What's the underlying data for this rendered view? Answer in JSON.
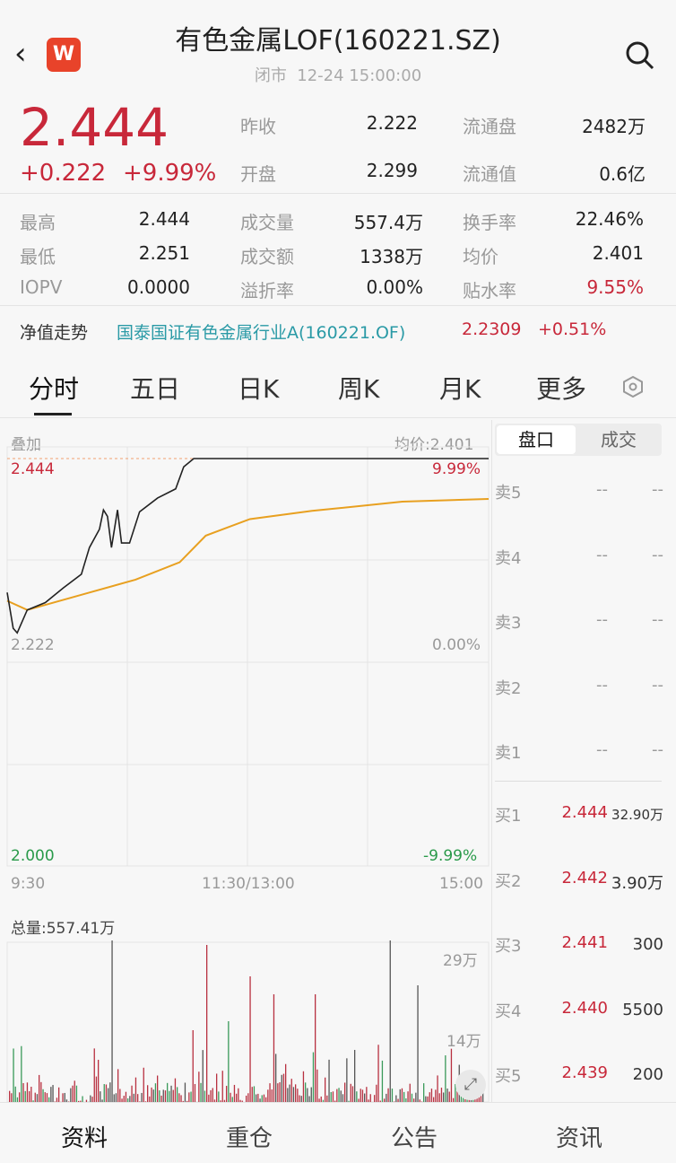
{
  "header": {
    "title": "有色金属LOF(160221.SZ)",
    "status": "闭市",
    "datetime": "12-24 15:00:00",
    "logo_letter": "W",
    "back_icon": "chevron-left",
    "search_icon": "search"
  },
  "quote": {
    "price": "2.444",
    "change": "+0.222",
    "change_pct": "+9.99%",
    "top_stats": [
      {
        "label": "昨收",
        "value": "2.222"
      },
      {
        "label": "流通盘",
        "value": "2482万"
      },
      {
        "label": "开盘",
        "value": "2.299"
      },
      {
        "label": "流通值",
        "value": "0.6亿"
      }
    ],
    "grid": [
      [
        {
          "label": "最高",
          "value": "2.444"
        },
        {
          "label": "成交量",
          "value": "557.4万"
        },
        {
          "label": "换手率",
          "value": "22.46%"
        }
      ],
      [
        {
          "label": "最低",
          "value": "2.251"
        },
        {
          "label": "成交额",
          "value": "1338万"
        },
        {
          "label": "均价",
          "value": "2.401"
        }
      ],
      [
        {
          "label": "IOPV",
          "value": "0.0000"
        },
        {
          "label": "溢折率",
          "value": "0.00%"
        },
        {
          "label": "贴水率",
          "value": "9.55%",
          "color": "#c8283a"
        }
      ]
    ]
  },
  "nav": {
    "label": "净值走势",
    "fund": "国泰国证有色金属行业A(160221.OF)",
    "value": "2.2309",
    "change": "+0.51%"
  },
  "tabs": [
    "分时",
    "五日",
    "日K",
    "周K",
    "月K",
    "更多"
  ],
  "chart": {
    "overlay": "叠加",
    "avg_label": "均价:2.401",
    "y_top": "2.444",
    "y_mid": "2.222",
    "y_bot": "2.000",
    "pct_top": "9.99%",
    "pct_mid": "0.00%",
    "pct_bot": "-9.99%",
    "x_labels": [
      "9:30",
      "11:30/13:00",
      "15:00"
    ],
    "price_color": "#222222",
    "avg_color": "#e8a020",
    "price": [
      [
        0,
        2.298
      ],
      [
        3,
        2.259
      ],
      [
        5,
        2.254
      ],
      [
        10,
        2.279
      ],
      [
        19,
        2.287
      ],
      [
        28,
        2.303
      ],
      [
        37,
        2.318
      ],
      [
        41,
        2.347
      ],
      [
        46,
        2.367
      ],
      [
        48,
        2.388
      ],
      [
        50,
        2.381
      ],
      [
        52,
        2.347
      ],
      [
        55,
        2.388
      ],
      [
        57,
        2.352
      ],
      [
        61,
        2.352
      ],
      [
        66,
        2.386
      ],
      [
        75,
        2.401
      ],
      [
        84,
        2.411
      ],
      [
        88,
        2.435
      ],
      [
        93,
        2.444
      ],
      [
        240,
        2.444
      ]
    ],
    "avg": [
      [
        0,
        2.289
      ],
      [
        10,
        2.279
      ],
      [
        41,
        2.298
      ],
      [
        64,
        2.312
      ],
      [
        86,
        2.331
      ],
      [
        99,
        2.36
      ],
      [
        121,
        2.378
      ],
      [
        152,
        2.387
      ],
      [
        197,
        2.397
      ],
      [
        240,
        2.4
      ]
    ]
  },
  "volume": {
    "total": "总量:557.41万",
    "max_label": "29万",
    "mid_label": "14万"
  },
  "orderbook": {
    "tabs": [
      "盘口",
      "成交"
    ],
    "asks": [
      {
        "label": "卖5",
        "price": "--",
        "vol": "--"
      },
      {
        "label": "卖4",
        "price": "--",
        "vol": "--"
      },
      {
        "label": "卖3",
        "price": "--",
        "vol": "--"
      },
      {
        "label": "卖2",
        "price": "--",
        "vol": "--"
      },
      {
        "label": "卖1",
        "price": "--",
        "vol": "--"
      }
    ],
    "bids": [
      {
        "label": "买1",
        "price": "2.444",
        "vol": "32.90万"
      },
      {
        "label": "买2",
        "price": "2.442",
        "vol": "3.90万"
      },
      {
        "label": "买3",
        "price": "2.441",
        "vol": "300"
      },
      {
        "label": "买4",
        "price": "2.440",
        "vol": "5500"
      },
      {
        "label": "买5",
        "price": "2.439",
        "vol": "200"
      }
    ]
  },
  "bottom_tabs": [
    "资料",
    "重仓",
    "公告",
    "资讯"
  ]
}
